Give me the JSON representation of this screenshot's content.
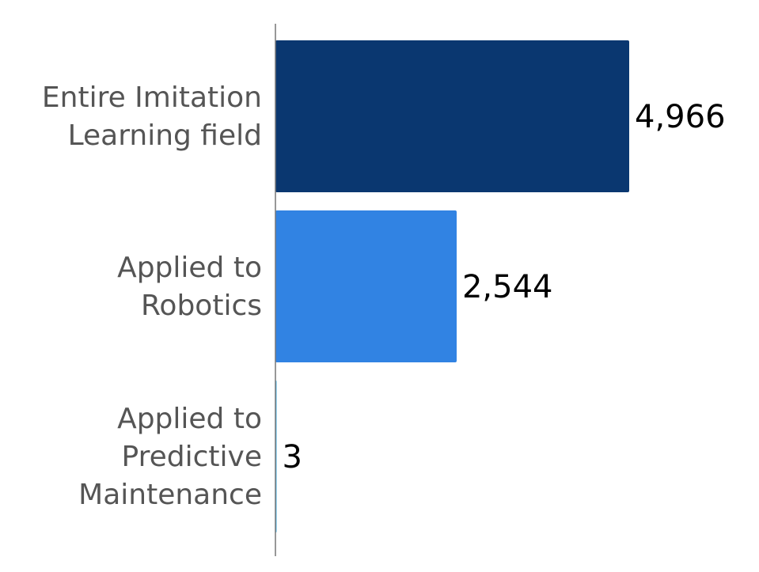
{
  "chart_data": {
    "type": "bar",
    "orientation": "horizontal",
    "categories": [
      [
        "Entire Imitation",
        "Learning field"
      ],
      [
        "Applied to",
        "Robotics"
      ],
      [
        "Applied to",
        "Predictive",
        "Maintenance"
      ]
    ],
    "values": [
      4966,
      2544,
      3
    ],
    "value_labels": [
      "4,966",
      "2,544",
      "3"
    ],
    "bar_colors": [
      "#0a3770",
      "#3183e3",
      "#45b3e8"
    ],
    "axis_color": "#777777",
    "xlim": [
      0,
      5000
    ],
    "title": "",
    "xlabel": "",
    "ylabel": "",
    "grid": false,
    "legend": "none"
  }
}
